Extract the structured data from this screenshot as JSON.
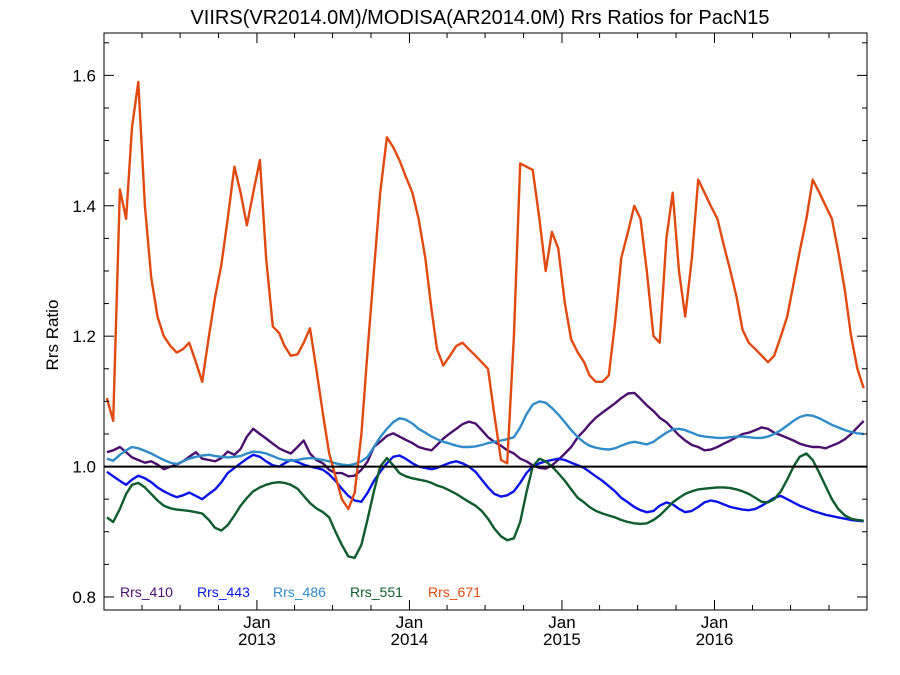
{
  "chart_data": {
    "type": "line",
    "title": "VIIRS(VR2014.0M)/MODISA(AR2014.0M)  Rrs Ratios for PacN15",
    "ylabel": "Rrs Ratio",
    "xlabel": "",
    "xlim": [
      "2012-01-01",
      "2016-12-31"
    ],
    "ylim": [
      0.78,
      1.665
    ],
    "yticks": [
      0.8,
      1.0,
      1.2,
      1.4,
      1.6
    ],
    "ytick_labels": [
      "0.8",
      "1.0",
      "1.2",
      "1.4",
      "1.6"
    ],
    "xticks": [
      {
        "date": "2013-01-01",
        "month": "Jan",
        "year": "2013"
      },
      {
        "date": "2014-01-01",
        "month": "Jan",
        "year": "2014"
      },
      {
        "date": "2015-01-01",
        "month": "Jan",
        "year": "2015"
      },
      {
        "date": "2016-01-01",
        "month": "Jan",
        "year": "2016"
      }
    ],
    "reference_line": 1.0,
    "legend_position": "bottom-left",
    "x": [
      "2012-01-08",
      "2012-01-23",
      "2012-02-08",
      "2012-02-23",
      "2012-03-08",
      "2012-03-23",
      "2012-04-08",
      "2012-04-23",
      "2012-05-08",
      "2012-05-23",
      "2012-06-08",
      "2012-06-23",
      "2012-07-08",
      "2012-07-23",
      "2012-08-08",
      "2012-08-23",
      "2012-09-08",
      "2012-09-23",
      "2012-10-08",
      "2012-10-23",
      "2012-11-08",
      "2012-11-23",
      "2012-12-08",
      "2012-12-23",
      "2013-01-08",
      "2013-01-23",
      "2013-02-08",
      "2013-02-23",
      "2013-03-08",
      "2013-03-23",
      "2013-04-08",
      "2013-04-23",
      "2013-05-08",
      "2013-05-23",
      "2013-06-08",
      "2013-06-23",
      "2013-07-08",
      "2013-07-23",
      "2013-08-08",
      "2013-08-23",
      "2013-09-08",
      "2013-09-23",
      "2013-10-08",
      "2013-10-23",
      "2013-11-08",
      "2013-11-23",
      "2013-12-08",
      "2013-12-23",
      "2014-01-08",
      "2014-01-23",
      "2014-02-08",
      "2014-02-23",
      "2014-03-08",
      "2014-03-23",
      "2014-04-08",
      "2014-04-23",
      "2014-05-08",
      "2014-05-23",
      "2014-06-08",
      "2014-06-23",
      "2014-07-08",
      "2014-07-23",
      "2014-08-08",
      "2014-08-23",
      "2014-09-08",
      "2014-09-23",
      "2014-10-08",
      "2014-10-23",
      "2014-11-08",
      "2014-11-23",
      "2014-12-08",
      "2014-12-23",
      "2015-01-08",
      "2015-01-23",
      "2015-02-08",
      "2015-02-23",
      "2015-03-08",
      "2015-03-23",
      "2015-04-08",
      "2015-04-23",
      "2015-05-08",
      "2015-05-23",
      "2015-06-08",
      "2015-06-23",
      "2015-07-08",
      "2015-07-23",
      "2015-08-08",
      "2015-08-23",
      "2015-09-08",
      "2015-09-23",
      "2015-10-08",
      "2015-10-23",
      "2015-11-08",
      "2015-11-23",
      "2015-12-08",
      "2015-12-23",
      "2016-01-08",
      "2016-01-23",
      "2016-02-08",
      "2016-02-23",
      "2016-03-08",
      "2016-03-23",
      "2016-04-08",
      "2016-04-23",
      "2016-05-08",
      "2016-05-23",
      "2016-06-08",
      "2016-06-23",
      "2016-07-08",
      "2016-07-23",
      "2016-08-08",
      "2016-08-23",
      "2016-09-08",
      "2016-09-23",
      "2016-10-08",
      "2016-10-23",
      "2016-11-08",
      "2016-11-23",
      "2016-12-08",
      "2016-12-23"
    ],
    "series": [
      {
        "name": "Rrs_410",
        "color": "#4b0f6e",
        "values": [
          1.022,
          1.025,
          1.03,
          1.022,
          1.014,
          1.01,
          1.006,
          1.008,
          1.003,
          0.996,
          1.0,
          1.003,
          1.008,
          1.015,
          1.022,
          1.012,
          1.01,
          1.008,
          1.013,
          1.023,
          1.018,
          1.027,
          1.046,
          1.058,
          1.05,
          1.043,
          1.035,
          1.028,
          1.024,
          1.02,
          1.03,
          1.04,
          1.02,
          1.01,
          1.005,
          0.995,
          0.99,
          0.99,
          0.985,
          0.986,
          0.995,
          1.008,
          1.03,
          1.038,
          1.047,
          1.051,
          1.046,
          1.041,
          1.036,
          1.03,
          1.027,
          1.025,
          1.033,
          1.043,
          1.051,
          1.058,
          1.065,
          1.069,
          1.066,
          1.056,
          1.045,
          1.038,
          1.032,
          1.025,
          1.02,
          1.012,
          1.008,
          1.002,
          0.998,
          0.997,
          1.002,
          1.01,
          1.02,
          1.03,
          1.045,
          1.055,
          1.065,
          1.075,
          1.083,
          1.09,
          1.097,
          1.105,
          1.112,
          1.113,
          1.104,
          1.094,
          1.085,
          1.075,
          1.068,
          1.058,
          1.048,
          1.04,
          1.033,
          1.03,
          1.025,
          1.026,
          1.03,
          1.035,
          1.04,
          1.045,
          1.05,
          1.052,
          1.056,
          1.06,
          1.058,
          1.052,
          1.048,
          1.044,
          1.04,
          1.035,
          1.032,
          1.03,
          1.03,
          1.028,
          1.032,
          1.036,
          1.042,
          1.05,
          1.06,
          1.07
        ]
      },
      {
        "name": "Rrs_443",
        "color": "#0a14e6",
        "values": [
          0.992,
          0.985,
          0.978,
          0.972,
          0.98,
          0.986,
          0.982,
          0.976,
          0.968,
          0.962,
          0.957,
          0.953,
          0.956,
          0.96,
          0.955,
          0.95,
          0.958,
          0.965,
          0.976,
          0.99,
          0.998,
          1.005,
          1.012,
          1.018,
          1.015,
          1.008,
          1.002,
          1.0,
          1.005,
          1.01,
          1.007,
          1.003,
          1.0,
          0.998,
          0.995,
          0.988,
          0.978,
          0.966,
          0.955,
          0.948,
          0.946,
          0.96,
          0.978,
          0.992,
          1.005,
          1.015,
          1.017,
          1.012,
          1.005,
          1.0,
          0.998,
          0.996,
          0.998,
          1.002,
          1.006,
          1.008,
          1.005,
          1.0,
          0.992,
          0.98,
          0.968,
          0.958,
          0.954,
          0.956,
          0.962,
          0.975,
          0.99,
          1.0,
          1.005,
          1.008,
          1.01,
          1.012,
          1.01,
          1.006,
          1.002,
          0.998,
          0.992,
          0.985,
          0.978,
          0.97,
          0.962,
          0.952,
          0.945,
          0.938,
          0.933,
          0.93,
          0.932,
          0.94,
          0.945,
          0.942,
          0.935,
          0.93,
          0.932,
          0.938,
          0.945,
          0.948,
          0.946,
          0.942,
          0.938,
          0.936,
          0.934,
          0.933,
          0.935,
          0.94,
          0.946,
          0.952,
          0.955,
          0.95,
          0.945,
          0.94,
          0.936,
          0.932,
          0.929,
          0.926,
          0.924,
          0.922,
          0.92,
          0.918,
          0.917,
          0.916
        ]
      },
      {
        "name": "Rrs_486",
        "color": "#2f8cc8",
        "values": [
          1.012,
          1.009,
          1.018,
          1.025,
          1.03,
          1.028,
          1.024,
          1.02,
          1.015,
          1.01,
          1.006,
          1.004,
          1.008,
          1.012,
          1.015,
          1.017,
          1.018,
          1.016,
          1.015,
          1.014,
          1.015,
          1.016,
          1.02,
          1.023,
          1.022,
          1.02,
          1.016,
          1.012,
          1.01,
          1.009,
          1.01,
          1.012,
          1.013,
          1.012,
          1.01,
          1.008,
          1.005,
          1.003,
          1.002,
          1.004,
          1.008,
          1.015,
          1.03,
          1.045,
          1.058,
          1.068,
          1.074,
          1.072,
          1.066,
          1.058,
          1.052,
          1.046,
          1.042,
          1.038,
          1.035,
          1.032,
          1.03,
          1.03,
          1.031,
          1.033,
          1.036,
          1.038,
          1.04,
          1.042,
          1.045,
          1.06,
          1.08,
          1.095,
          1.1,
          1.098,
          1.09,
          1.08,
          1.068,
          1.056,
          1.045,
          1.037,
          1.032,
          1.029,
          1.027,
          1.026,
          1.028,
          1.032,
          1.036,
          1.038,
          1.036,
          1.034,
          1.038,
          1.045,
          1.052,
          1.057,
          1.058,
          1.056,
          1.052,
          1.048,
          1.046,
          1.045,
          1.044,
          1.044,
          1.045,
          1.046,
          1.046,
          1.045,
          1.044,
          1.044,
          1.046,
          1.05,
          1.056,
          1.063,
          1.07,
          1.076,
          1.079,
          1.078,
          1.074,
          1.069,
          1.064,
          1.06,
          1.056,
          1.053,
          1.051,
          1.05
        ]
      },
      {
        "name": "Rrs_551",
        "color": "#0f5c2e",
        "values": [
          0.922,
          0.915,
          0.935,
          0.958,
          0.972,
          0.975,
          0.968,
          0.958,
          0.948,
          0.94,
          0.936,
          0.934,
          0.933,
          0.932,
          0.93,
          0.928,
          0.918,
          0.906,
          0.902,
          0.91,
          0.925,
          0.94,
          0.952,
          0.962,
          0.968,
          0.972,
          0.975,
          0.976,
          0.975,
          0.972,
          0.966,
          0.955,
          0.944,
          0.936,
          0.93,
          0.922,
          0.9,
          0.88,
          0.862,
          0.86,
          0.88,
          0.92,
          0.962,
          1.0,
          1.013,
          1.002,
          0.99,
          0.985,
          0.982,
          0.98,
          0.978,
          0.975,
          0.971,
          0.968,
          0.963,
          0.958,
          0.952,
          0.946,
          0.94,
          0.932,
          0.92,
          0.905,
          0.893,
          0.887,
          0.89,
          0.915,
          0.96,
          1.0,
          1.012,
          1.008,
          1.0,
          0.99,
          0.978,
          0.965,
          0.952,
          0.945,
          0.938,
          0.932,
          0.928,
          0.925,
          0.922,
          0.918,
          0.915,
          0.913,
          0.912,
          0.913,
          0.918,
          0.925,
          0.935,
          0.945,
          0.952,
          0.958,
          0.962,
          0.965,
          0.966,
          0.967,
          0.968,
          0.968,
          0.967,
          0.965,
          0.962,
          0.958,
          0.952,
          0.946,
          0.945,
          0.95,
          0.962,
          0.98,
          1.0,
          1.015,
          1.02,
          1.01,
          0.99,
          0.97,
          0.95,
          0.935,
          0.925,
          0.92,
          0.918,
          0.917
        ]
      },
      {
        "name": "Rrs_671",
        "color": "#e04a10",
        "values": [
          1.105,
          1.07,
          1.425,
          1.38,
          1.52,
          1.59,
          1.4,
          1.29,
          1.23,
          1.2,
          1.185,
          1.175,
          1.18,
          1.19,
          1.16,
          1.13,
          1.2,
          1.26,
          1.31,
          1.38,
          1.46,
          1.42,
          1.37,
          1.42,
          1.47,
          1.32,
          1.215,
          1.205,
          1.185,
          1.17,
          1.172,
          1.19,
          1.212,
          1.15,
          1.08,
          1.02,
          0.985,
          0.95,
          0.935,
          0.96,
          1.05,
          1.18,
          1.3,
          1.42,
          1.505,
          1.49,
          1.47,
          1.445,
          1.42,
          1.38,
          1.32,
          1.24,
          1.18,
          1.155,
          1.17,
          1.185,
          1.19,
          1.18,
          1.17,
          1.16,
          1.15,
          1.08,
          1.01,
          1.005,
          1.2,
          1.465,
          1.46,
          1.455,
          1.38,
          1.3,
          1.36,
          1.335,
          1.25,
          1.195,
          1.175,
          1.16,
          1.14,
          1.13,
          1.13,
          1.14,
          1.22,
          1.32,
          1.36,
          1.4,
          1.38,
          1.3,
          1.2,
          1.19,
          1.35,
          1.42,
          1.3,
          1.23,
          1.32,
          1.44,
          1.42,
          1.4,
          1.38,
          1.34,
          1.3,
          1.26,
          1.21,
          1.19,
          1.18,
          1.17,
          1.16,
          1.17,
          1.2,
          1.23,
          1.28,
          1.33,
          1.38,
          1.44,
          1.42,
          1.4,
          1.38,
          1.33,
          1.27,
          1.2,
          1.15,
          1.12
        ]
      }
    ]
  }
}
